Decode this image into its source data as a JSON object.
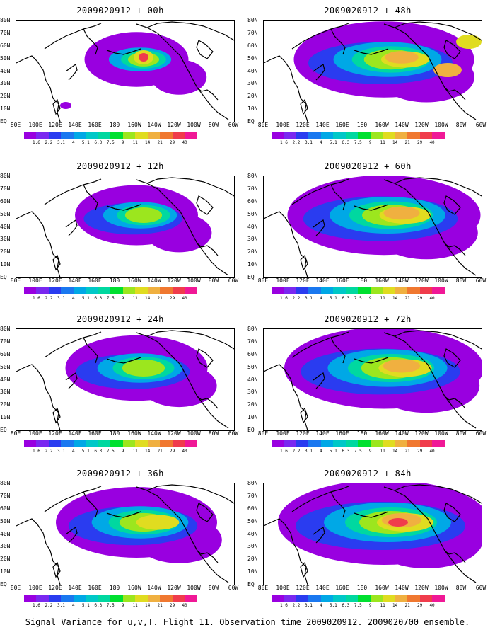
{
  "caption": "Signal Variance for u,v,T. Flight 11. Observation time 2009020912. 2009020700 ensemble.",
  "y_labels": [
    "80N",
    "70N",
    "60N",
    "50N",
    "40N",
    "30N",
    "20N",
    "10N",
    "EQ"
  ],
  "x_labels": [
    "80E",
    "100E",
    "120E",
    "140E",
    "160E",
    "180",
    "160W",
    "140W",
    "120W",
    "100W",
    "80W",
    "60W"
  ],
  "colorbar": {
    "labels": [
      "1.6",
      "2.2",
      "3.1",
      "4",
      "5.1",
      "6.3",
      "7.5",
      "9",
      "11",
      "14",
      "21",
      "29",
      "40"
    ],
    "colors": [
      "#9900e0",
      "#7a28f0",
      "#2a3cf0",
      "#1a78f0",
      "#00a8e6",
      "#00c8c8",
      "#00d8a0",
      "#00e030",
      "#9ce61e",
      "#e0dc20",
      "#f0b040",
      "#f07830",
      "#f03c4c",
      "#f01896",
      "#ffffff"
    ]
  },
  "panels": [
    {
      "title": "2009020912 + 00h",
      "intensity": 0.15
    },
    {
      "title": "2009020912 + 48h",
      "intensity": 0.75
    },
    {
      "title": "2009020912 + 12h",
      "intensity": 0.3
    },
    {
      "title": "2009020912 + 60h",
      "intensity": 0.85
    },
    {
      "title": "2009020912 + 24h",
      "intensity": 0.45
    },
    {
      "title": "2009020912 + 72h",
      "intensity": 0.9
    },
    {
      "title": "2009020912 + 36h",
      "intensity": 0.6
    },
    {
      "title": "2009020912 + 84h",
      "intensity": 1.0
    }
  ]
}
